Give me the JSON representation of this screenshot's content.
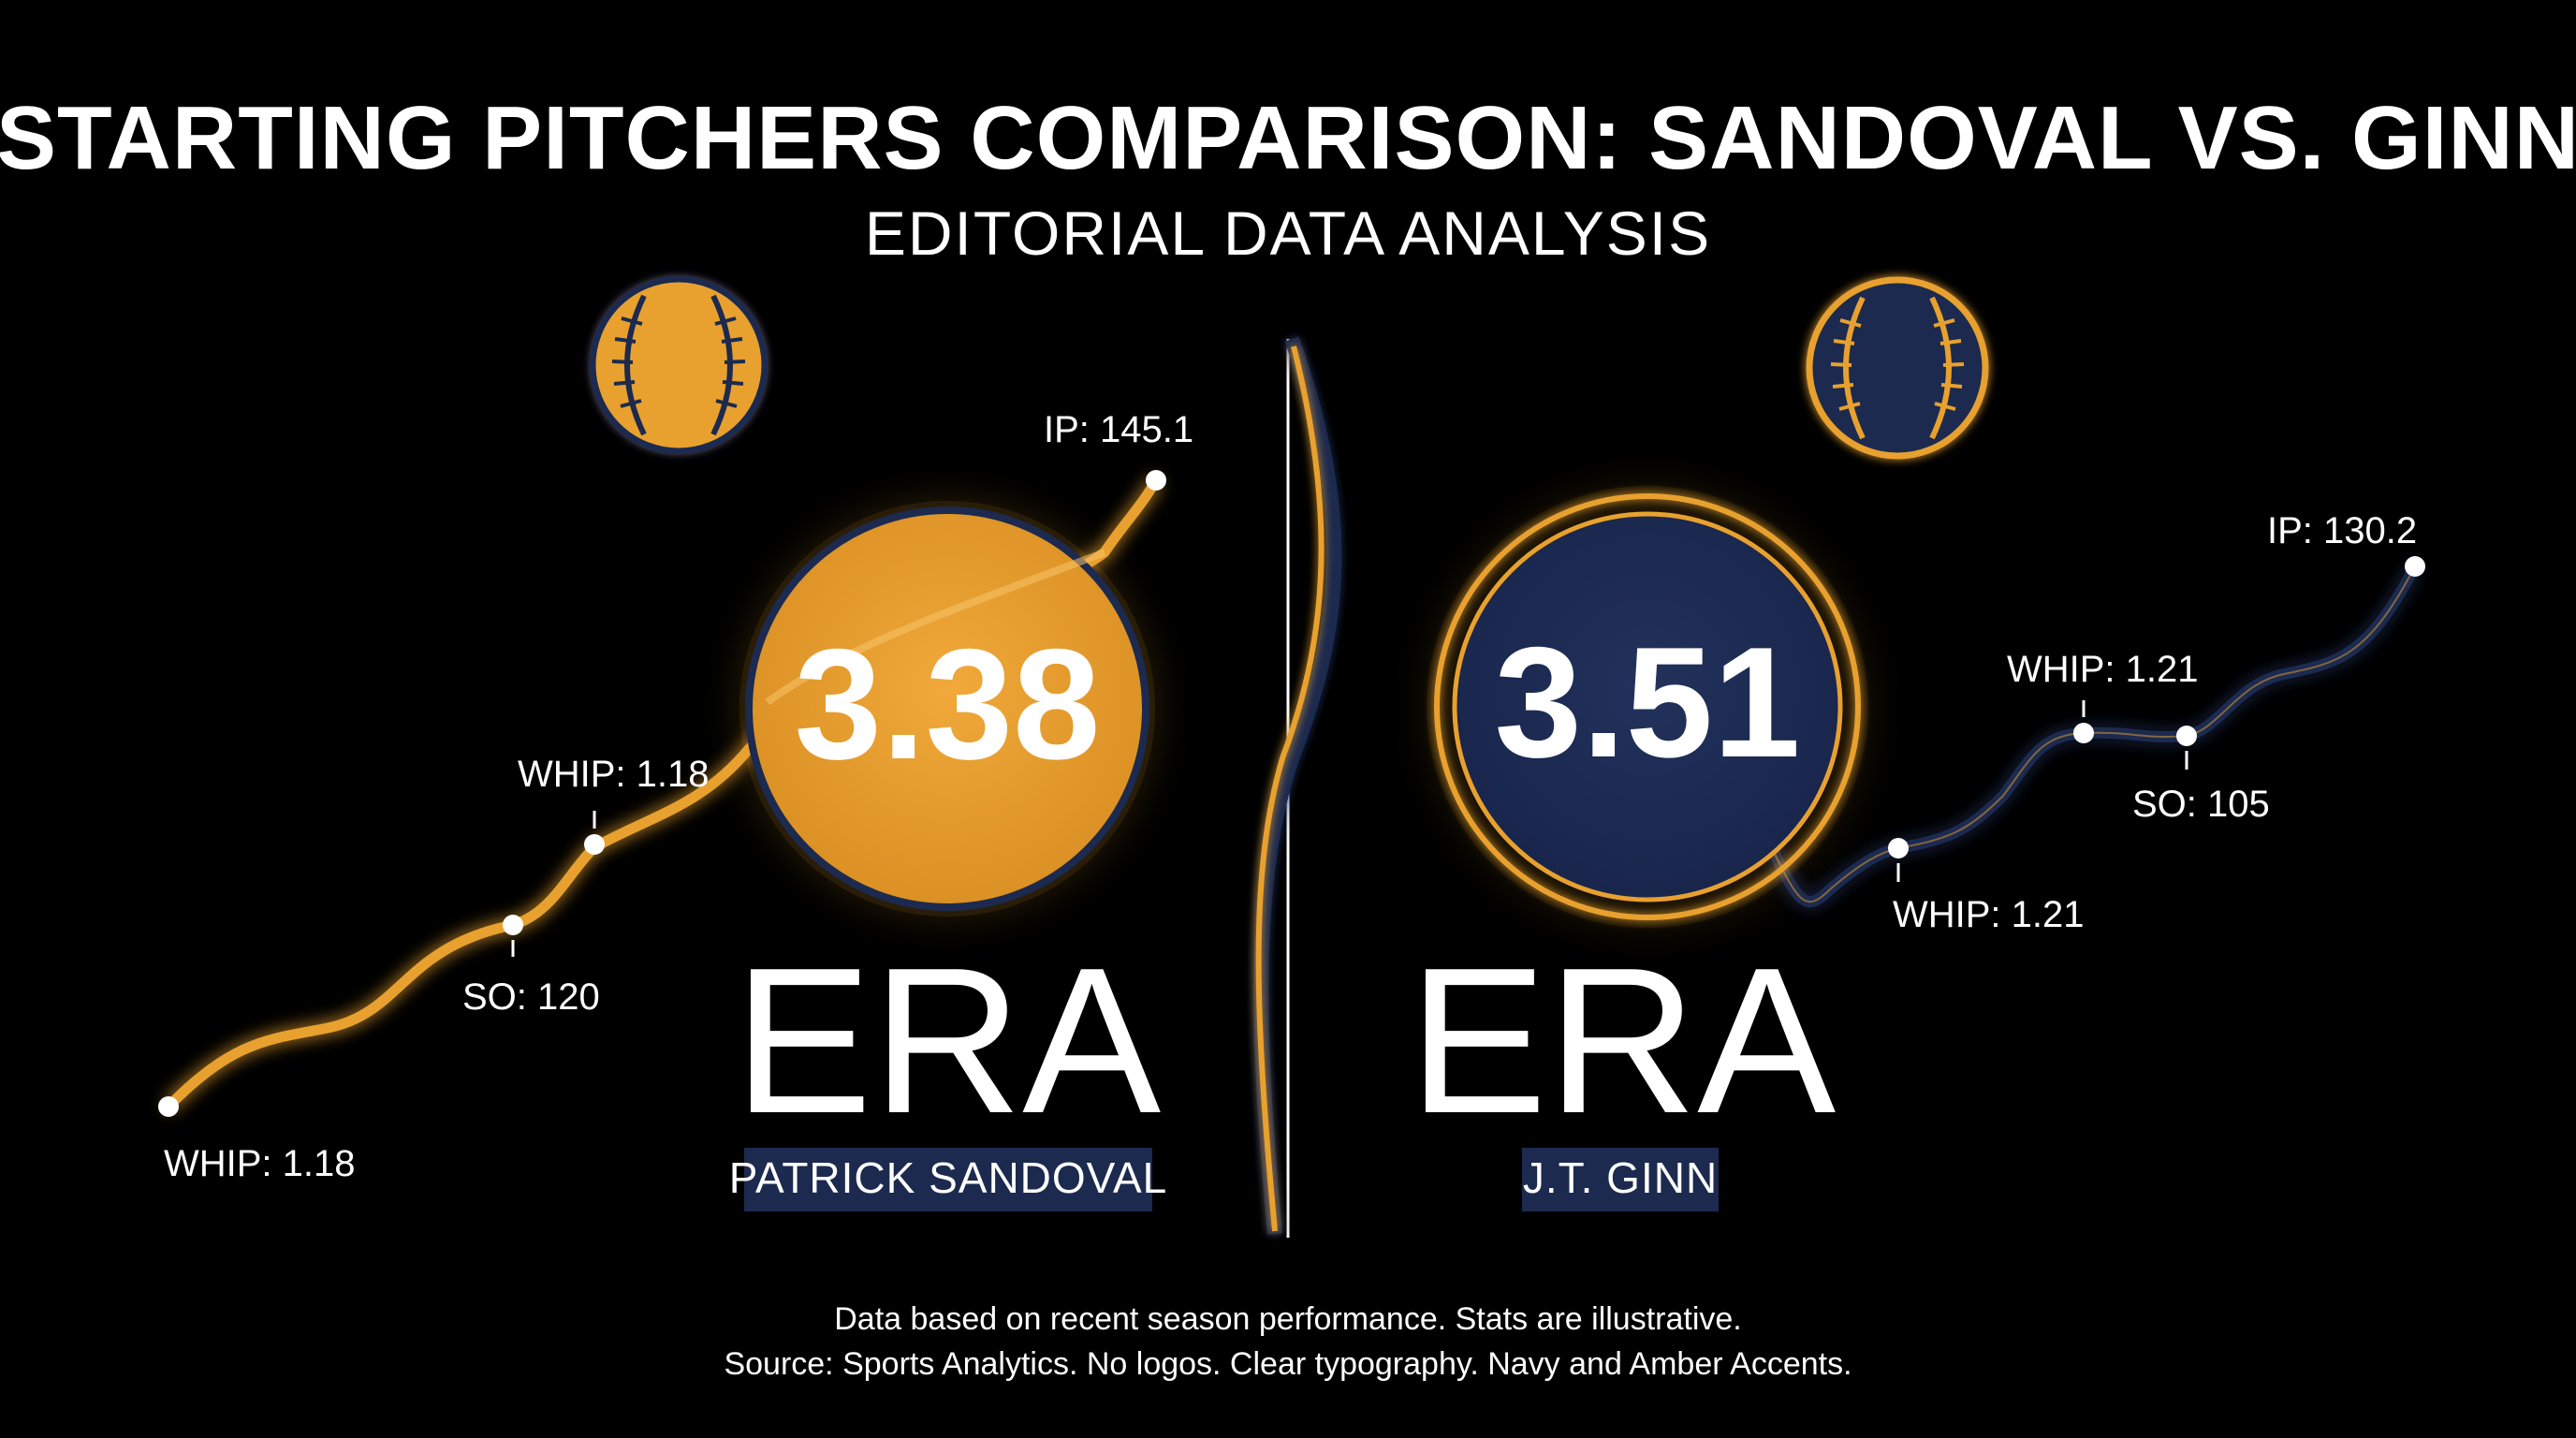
{
  "title": "STARTING PITCHERS COMPARISON: SANDOVAL VS. GINN",
  "subtitle": "EDITORIAL DATA ANALYSIS",
  "colors": {
    "background": "#000000",
    "amber": "#E8A12F",
    "navy": "#1C2A4F",
    "text": "#FFFFFF"
  },
  "chart_data": [
    {
      "type": "line",
      "player": "PATRICK SANDOVAL",
      "era_label": "ERA",
      "era_value": "3.38",
      "accent": "amber",
      "points": [
        {
          "label": "WHIP: 1.18"
        },
        {
          "label": "SO: 120"
        },
        {
          "label": "WHIP: 1.18"
        },
        {
          "label": "IP: 145.1"
        }
      ]
    },
    {
      "type": "line",
      "player": "J.T. GINN",
      "era_label": "ERA",
      "era_value": "3.51",
      "accent": "navy",
      "points": [
        {
          "label": "WHIP: 1.21"
        },
        {
          "label": "WHIP: 1.21"
        },
        {
          "label": "SO: 105"
        },
        {
          "label": "IP: 130.2"
        }
      ]
    }
  ],
  "footer": {
    "line1": "Data based on recent season performance. Stats are illustrative.",
    "line2": "Source: Sports Analytics. No logos. Clear typography. Navy and Amber Accents."
  }
}
